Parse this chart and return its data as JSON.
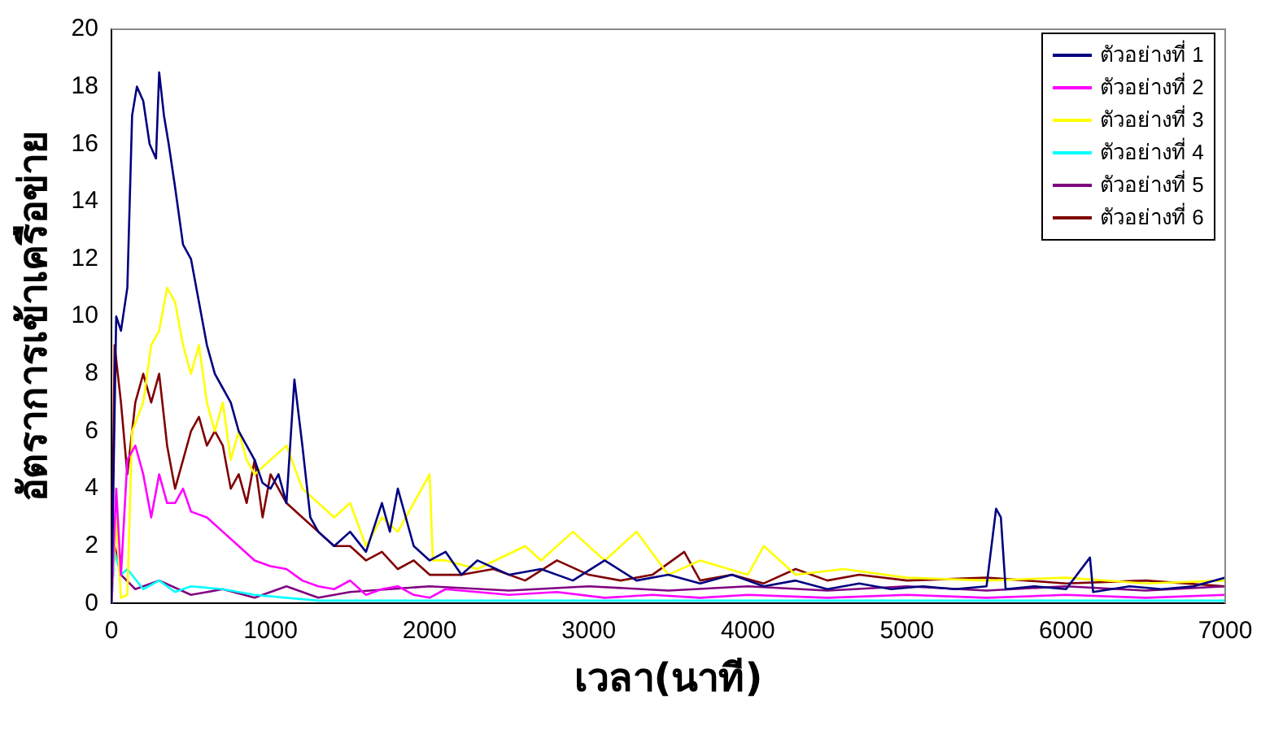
{
  "chart_data": {
    "type": "line",
    "xlabel": "เวลา(นาที)",
    "ylabel": "อัตราการเข้าเครือข่าย",
    "xlim": [
      0,
      7000
    ],
    "xticks": [
      0,
      1000,
      2000,
      3000,
      4000,
      5000,
      6000,
      7000
    ],
    "ylim": [
      0,
      20
    ],
    "yticks": [
      0,
      2,
      4,
      6,
      8,
      10,
      12,
      14,
      16,
      18,
      20
    ],
    "grid": false,
    "legend": "top right",
    "marker": "none",
    "line_style": "solid",
    "series": [
      {
        "name": "ตัวอย่างที่ 1",
        "color": "#000080",
        "x": [
          0,
          30,
          60,
          100,
          130,
          160,
          200,
          240,
          280,
          300,
          330,
          360,
          400,
          450,
          500,
          550,
          600,
          650,
          700,
          750,
          800,
          850,
          900,
          950,
          1000,
          1050,
          1100,
          1150,
          1200,
          1250,
          1300,
          1400,
          1500,
          1600,
          1700,
          1750,
          1800,
          1900,
          2000,
          2100,
          2200,
          2300,
          2500,
          2700,
          2900,
          3100,
          3300,
          3500,
          3700,
          3900,
          4100,
          4300,
          4500,
          4700,
          4900,
          5100,
          5300,
          5500,
          5560,
          5590,
          5620,
          5800,
          6000,
          6150,
          6170,
          6400,
          6600,
          6800,
          7000
        ],
        "values": [
          0,
          10,
          9.5,
          11,
          17,
          18,
          17.5,
          16,
          15.5,
          18.5,
          17,
          16,
          14.5,
          12.5,
          12,
          10.5,
          9,
          8,
          7.5,
          7,
          6,
          5.5,
          5,
          4.2,
          4,
          4.5,
          3.5,
          7.8,
          5.5,
          3,
          2.5,
          2,
          2.5,
          1.8,
          3.5,
          2.5,
          4,
          2,
          1.5,
          1.8,
          1,
          1.5,
          1,
          1.2,
          0.8,
          1.5,
          0.8,
          1,
          0.7,
          1,
          0.6,
          0.8,
          0.5,
          0.7,
          0.5,
          0.6,
          0.5,
          0.6,
          3.3,
          3,
          0.5,
          0.6,
          0.5,
          1.6,
          0.4,
          0.6,
          0.5,
          0.6,
          0.9
        ]
      },
      {
        "name": "ตัวอย่างที่ 2",
        "color": "#ff00ff",
        "x": [
          0,
          30,
          60,
          100,
          150,
          200,
          250,
          300,
          350,
          400,
          450,
          500,
          600,
          700,
          800,
          900,
          1000,
          1100,
          1200,
          1300,
          1400,
          1500,
          1600,
          1700,
          1800,
          1900,
          2000,
          2100,
          2300,
          2500,
          2800,
          3100,
          3400,
          3700,
          4000,
          4500,
          5000,
          5500,
          6000,
          6500,
          7000
        ],
        "values": [
          0,
          4,
          1,
          5,
          5.5,
          4.5,
          3,
          4.5,
          3.5,
          3.5,
          4,
          3.2,
          3,
          2.5,
          2,
          1.5,
          1.3,
          1.2,
          0.8,
          0.6,
          0.5,
          0.8,
          0.3,
          0.5,
          0.6,
          0.3,
          0.2,
          0.5,
          0.4,
          0.3,
          0.4,
          0.2,
          0.3,
          0.2,
          0.3,
          0.2,
          0.3,
          0.2,
          0.3,
          0.2,
          0.3
        ]
      },
      {
        "name": "ตัวอย่างที่ 3",
        "color": "#ffff00",
        "x": [
          0,
          30,
          60,
          100,
          130,
          200,
          250,
          300,
          350,
          400,
          450,
          500,
          550,
          600,
          650,
          700,
          750,
          800,
          850,
          900,
          1000,
          1100,
          1200,
          1300,
          1400,
          1500,
          1600,
          1700,
          1800,
          1900,
          2000,
          2020,
          2100,
          2300,
          2600,
          2700,
          2900,
          3100,
          3300,
          3500,
          3700,
          4000,
          4100,
          4300,
          4600,
          5000,
          5500,
          6000,
          6500,
          7000
        ],
        "values": [
          0,
          3,
          0.2,
          0.3,
          6,
          7,
          9,
          9.5,
          11,
          10.5,
          9,
          8,
          9,
          7,
          6,
          7,
          5,
          6,
          5,
          4.5,
          5,
          5.5,
          4,
          3.5,
          3,
          3.5,
          2,
          3,
          2.5,
          3.5,
          4.5,
          1.5,
          1.5,
          1.2,
          2,
          1.5,
          2.5,
          1.5,
          2.5,
          1,
          1.5,
          1,
          2,
          1,
          1.2,
          0.9,
          0.8,
          0.9,
          0.7,
          0.8
        ]
      },
      {
        "name": "ตัวอย่างที่ 4",
        "color": "#00ffff",
        "x": [
          0,
          20,
          60,
          100,
          200,
          300,
          400,
          500,
          700,
          900,
          1100,
          1300,
          1500,
          2000,
          3000,
          4000,
          5000,
          6000,
          7000
        ],
        "values": [
          0,
          1.8,
          1,
          1.2,
          0.5,
          0.8,
          0.4,
          0.6,
          0.5,
          0.3,
          0.2,
          0.1,
          0.1,
          0.1,
          0.1,
          0.1,
          0.1,
          0.1,
          0.1
        ]
      },
      {
        "name": "ตัวอย่างที่ 5",
        "color": "#800080",
        "x": [
          0,
          20,
          60,
          150,
          300,
          500,
          700,
          900,
          1100,
          1300,
          1500,
          2000,
          2500,
          3000,
          3500,
          4000,
          4500,
          5000,
          5500,
          6000,
          6500,
          7000
        ],
        "values": [
          0,
          2,
          1,
          0.5,
          0.8,
          0.3,
          0.5,
          0.2,
          0.6,
          0.2,
          0.4,
          0.6,
          0.45,
          0.6,
          0.45,
          0.6,
          0.45,
          0.6,
          0.45,
          0.6,
          0.45,
          0.6
        ]
      },
      {
        "name": "ตัวอย่างที่ 6",
        "color": "#800000",
        "x": [
          0,
          20,
          60,
          100,
          150,
          200,
          250,
          300,
          350,
          400,
          450,
          500,
          550,
          600,
          650,
          700,
          750,
          800,
          850,
          900,
          950,
          1000,
          1100,
          1200,
          1300,
          1400,
          1500,
          1600,
          1700,
          1800,
          1900,
          2000,
          2200,
          2400,
          2600,
          2800,
          3000,
          3200,
          3400,
          3600,
          3700,
          3900,
          4100,
          4300,
          4500,
          4700,
          5000,
          5500,
          6000,
          6500,
          7000
        ],
        "values": [
          0,
          9,
          7,
          4.5,
          7,
          8,
          7,
          8,
          5.5,
          4,
          5,
          6,
          6.5,
          5.5,
          6,
          5.5,
          4,
          4.5,
          3.5,
          5,
          3,
          4.5,
          3.5,
          3,
          2.5,
          2,
          2,
          1.5,
          1.8,
          1.2,
          1.5,
          1,
          1,
          1.2,
          0.8,
          1.5,
          1,
          0.8,
          1,
          1.8,
          0.8,
          1,
          0.7,
          1.2,
          0.8,
          1,
          0.8,
          0.9,
          0.7,
          0.8,
          0.6
        ]
      }
    ]
  }
}
